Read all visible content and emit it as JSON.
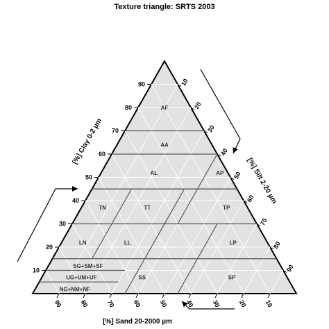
{
  "chart_data": {
    "type": "ternary",
    "title": "Texture triangle: SRTS 2003",
    "axes": {
      "clay": {
        "label": "[%] Clay 0-2 µm",
        "ticks": [
          "10",
          "20",
          "30",
          "40",
          "50",
          "60",
          "70",
          "80",
          "90"
        ]
      },
      "silt": {
        "label": "[%] Silt 2-20 µm",
        "ticks": [
          "10",
          "20",
          "30",
          "40",
          "50",
          "60",
          "70",
          "80",
          "90"
        ]
      },
      "sand": {
        "label": "[%] Sand 20-2000 µm",
        "ticks": [
          "10",
          "20",
          "30",
          "40",
          "50",
          "60",
          "70",
          "80",
          "90"
        ]
      }
    },
    "grid": true,
    "grid_step": 10,
    "boundary_lines": [
      {
        "from": {
          "clay": 70,
          "silt": 30
        },
        "to": {
          "clay": 70,
          "silt": 0
        }
      },
      {
        "from": {
          "clay": 60,
          "silt": 40
        },
        "to": {
          "clay": 60,
          "silt": 0
        }
      },
      {
        "from": {
          "clay": 45,
          "silt": 55
        },
        "to": {
          "clay": 45,
          "silt": 0
        }
      },
      {
        "from": {
          "clay": 45,
          "silt": 55
        },
        "to": {
          "clay": 45,
          "silt": 0
        }
      },
      {
        "from": {
          "clay": 30,
          "silt": 70
        },
        "to": {
          "clay": 30,
          "silt": 0
        }
      },
      {
        "from": {
          "clay": 15,
          "silt": 85
        },
        "to": {
          "clay": 15,
          "silt": 0
        }
      },
      {
        "from": {
          "clay": 10,
          "silt": 0
        },
        "to": {
          "clay": 10,
          "silt": 30
        }
      },
      {
        "from": {
          "clay": 5,
          "silt": 0
        },
        "to": {
          "clay": 5,
          "silt": 30
        }
      },
      {
        "from": {
          "clay": 45,
          "silt": 15
        },
        "to": {
          "clay": 15,
          "silt": 15
        }
      },
      {
        "from": {
          "clay": 45,
          "silt": 35
        },
        "to": {
          "clay": 0,
          "silt": 35
        }
      },
      {
        "from": {
          "clay": 60,
          "silt": 40
        },
        "to": {
          "clay": 30,
          "silt": 40
        }
      },
      {
        "from": {
          "clay": 30,
          "silt": 55
        },
        "to": {
          "clay": 0,
          "silt": 55
        }
      }
    ],
    "classes": [
      {
        "label": "AF",
        "clay": 80,
        "silt": 10
      },
      {
        "label": "AA",
        "clay": 64,
        "silt": 18
      },
      {
        "label": "AL",
        "clay": 52,
        "silt": 20
      },
      {
        "label": "AP",
        "clay": 52,
        "silt": 45
      },
      {
        "label": "TN",
        "clay": 37,
        "silt": 8
      },
      {
        "label": "TT",
        "clay": 37,
        "silt": 25
      },
      {
        "label": "TP",
        "clay": 37,
        "silt": 55
      },
      {
        "label": "LN",
        "clay": 22,
        "silt": 8
      },
      {
        "label": "LL",
        "clay": 22,
        "silt": 25
      },
      {
        "label": "LP",
        "clay": 22,
        "silt": 65
      },
      {
        "label": "SG+SM+SF",
        "clay": 12,
        "silt": 15
      },
      {
        "label": "UG+UM+UF",
        "clay": 7,
        "silt": 15
      },
      {
        "label": "NG+NM+NF",
        "clay": 2,
        "silt": 15
      },
      {
        "label": "SS",
        "clay": 7,
        "silt": 38
      },
      {
        "label": "SP",
        "clay": 7,
        "silt": 72
      }
    ]
  }
}
